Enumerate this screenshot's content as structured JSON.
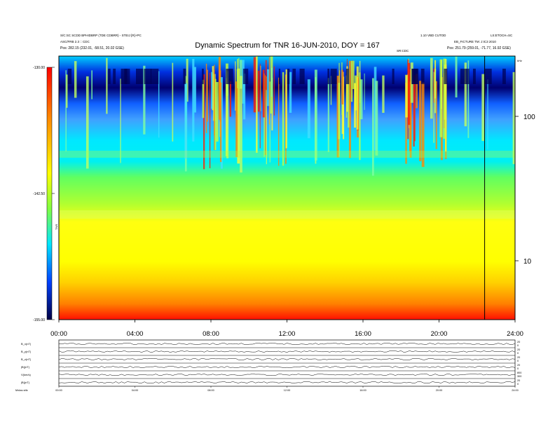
{
  "chart_data": {
    "type": "heatmap",
    "title": "Dynamic Spectrum for TNR 16-JUN-2010, DOY = 167",
    "header": {
      "left_line1": "S/C:SC SCDD BPHIDBRP (TDE CDBRR) - STEIJ [R]+PC",
      "left_line2": "ASC/FRB 2.3 :: CDC",
      "left_line3": "Pos:   282.15 (232.01, -58.51, 20.02 GSE)",
      "right_line1": "1.10 VBD CUTOD",
      "right_line2": "LS:ETOCH=SC",
      "right_line3": "EB_FICTURE TM: J:IC3 2010",
      "right_line4": "Pos:   251.79 (259.01, -71.77, 16.92 GSE)",
      "marker_label": "SR:CDC"
    },
    "colorbar": {
      "label": "TNR",
      "ticks": [
        "-130.00",
        "-142.50",
        "-155.00"
      ],
      "range": [
        -155,
        -130
      ]
    },
    "x_axis": {
      "ticks": [
        "00:00",
        "04:00",
        "08:00",
        "12:00",
        "16:00",
        "20:00",
        "24:00"
      ],
      "range_hours": [
        0,
        24
      ]
    },
    "y_axis": {
      "unit": "kHz",
      "scale": "log",
      "ticks": [
        "100",
        "10"
      ]
    },
    "event_line_hour": 22.4,
    "panels": [
      {
        "label": "B_x(nT)",
        "right_ticks": [
          "20",
          "0"
        ]
      },
      {
        "label": "B_y(nT)",
        "right_ticks": [
          "20",
          "0"
        ]
      },
      {
        "label": "B_z(nT)",
        "right_ticks": [
          "20",
          "0"
        ]
      },
      {
        "label": "|B|(nT)",
        "right_ticks": [
          "20",
          "0"
        ]
      },
      {
        "label": "V(km/s)",
        "right_ticks": [
          "800",
          "300"
        ]
      },
      {
        "label": "|B|(nT)",
        "right_ticks": [
          "20",
          "0"
        ]
      }
    ],
    "footer_left": "Mxlas   stfz"
  }
}
